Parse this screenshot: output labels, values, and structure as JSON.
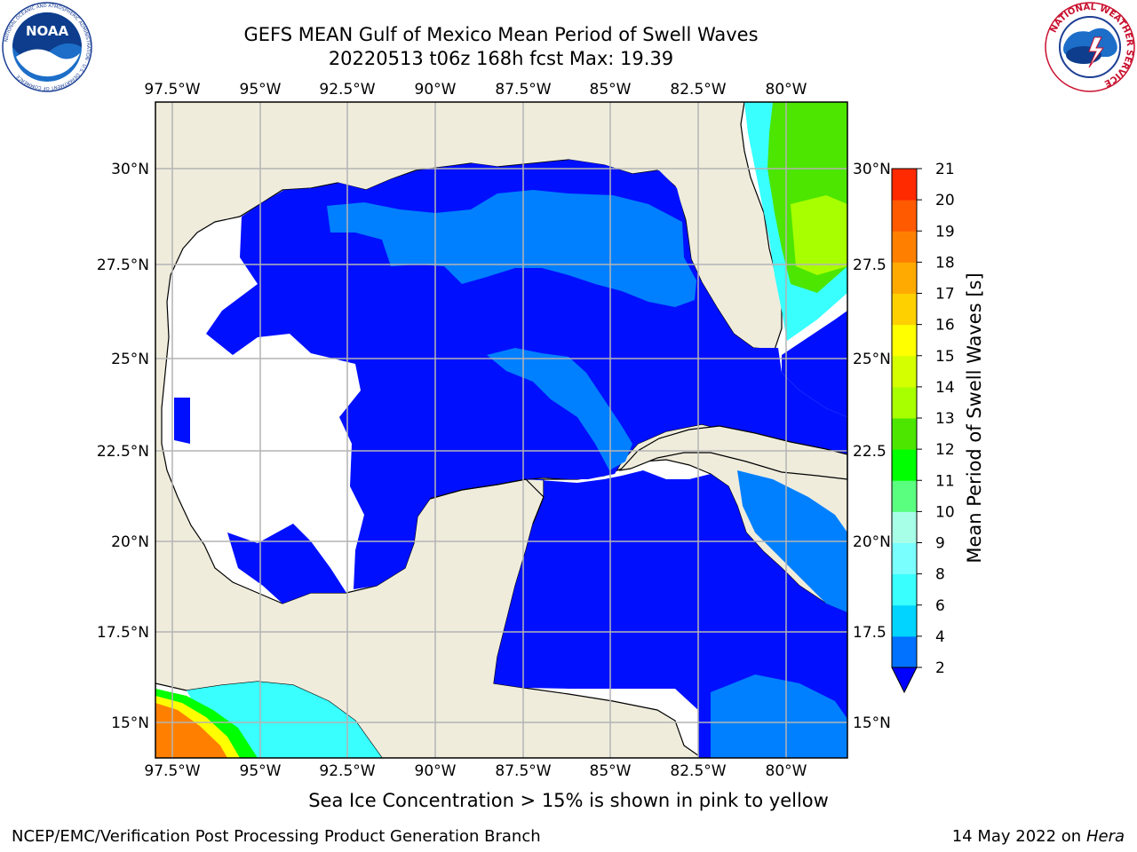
{
  "header": {
    "title_line1": "GEFS MEAN Gulf of Mexico Mean Period of Swell Waves",
    "title_line2": "20220513 t06z 168h fcst   Max: 19.39"
  },
  "logos": {
    "left": "NOAA",
    "left_ring_text": "NATIONAL OCEANIC AND ATMOSPHERIC ADMINISTRATION · U.S. DEPARTMENT OF COMMERCE",
    "right_ring_text": "NATIONAL WEATHER SERVICE"
  },
  "map": {
    "lon_labels": [
      "97.5°W",
      "95°W",
      "92.5°W",
      "90°W",
      "87.5°W",
      "85°W",
      "82.5°W",
      "80°W"
    ],
    "lat_labels_left": [
      "30°N",
      "27.5°N",
      "25°N",
      "22.5°N",
      "20°N",
      "17.5°N",
      "15°N"
    ],
    "lat_labels_right": [
      "30°N",
      "27.5",
      "25°N",
      "22.5",
      "20°N",
      "17.5",
      "15°N"
    ],
    "colors": {
      "land": "#efecdc",
      "grid": "#b4b4b4",
      "swell_2_4": "#0010ff",
      "swell_4_6": "#0080ff"
    }
  },
  "colorbar": {
    "label": "Mean Period of Swell Waves [s]",
    "ticks": [
      "2",
      "4",
      "6",
      "8",
      "9",
      "10",
      "11",
      "12",
      "13",
      "14",
      "15",
      "16",
      "17",
      "18",
      "19",
      "20",
      "21"
    ],
    "colors": [
      "#0072ff",
      "#00d4ff",
      "#39ffff",
      "#7affff",
      "#a8ffe8",
      "#5aff80",
      "#00ff00",
      "#4ce600",
      "#a8ff00",
      "#d4ff00",
      "#ffff00",
      "#ffd000",
      "#ffaa00",
      "#ff8000",
      "#ff5a00",
      "#ff2a00"
    ],
    "extend_color": "#0000ff"
  },
  "footer": {
    "note": "Sea Ice Concentration > 15% is shown in pink to yellow",
    "credit_left": "NCEP/EMC/Verification Post Processing Product Generation Branch",
    "credit_right_date": "14 May 2022 on",
    "credit_right_host": "Hera"
  }
}
